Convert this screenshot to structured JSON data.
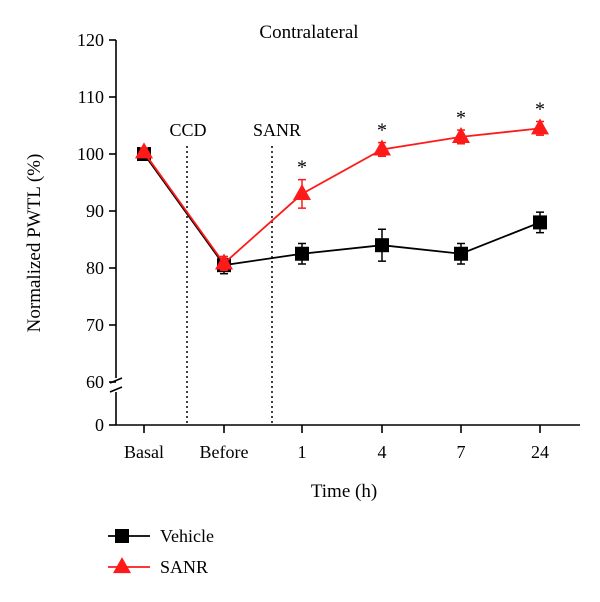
{
  "chart_data": {
    "type": "line",
    "title": "Contralateral",
    "xlabel": "Time (h)",
    "ylabel": "Normalized PWTL (%)",
    "categories": [
      "Basal",
      "Before",
      "1",
      "4",
      "7",
      "24"
    ],
    "yticks": [
      "0",
      "60",
      "70",
      "80",
      "90",
      "100",
      "110",
      "120"
    ],
    "ylim": [
      60,
      120
    ],
    "y_axis_break": true,
    "y_break_label": "0",
    "series": [
      {
        "name": "Vehicle",
        "color": "#000000",
        "marker": "square",
        "values": [
          100,
          80.5,
          82.5,
          84,
          82.5,
          88
        ],
        "errors": [
          0.8,
          1.5,
          1.8,
          2.8,
          1.8,
          1.8
        ]
      },
      {
        "name": "SANR",
        "color": "#ff1a1a",
        "marker": "triangle",
        "values": [
          100.3,
          80.8,
          93,
          100.8,
          103,
          104.5
        ],
        "errors": [
          0.8,
          1.2,
          2.5,
          1.2,
          1.2,
          1.2
        ],
        "significance": [
          "",
          "",
          "*",
          "*",
          "*",
          "*"
        ]
      }
    ],
    "annotations": [
      {
        "text": "CCD",
        "between": [
          "Basal",
          "Before"
        ]
      },
      {
        "text": "SANR",
        "between": [
          "Before",
          "1"
        ]
      }
    ],
    "legend": {
      "placement": "bottom-left",
      "entries": [
        "Vehicle",
        "SANR"
      ]
    }
  }
}
